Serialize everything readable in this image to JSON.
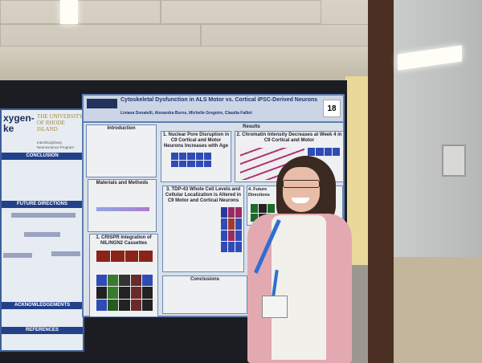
{
  "poster_main": {
    "title": "Cytoskeletal Dysfunction in ALS Motor vs. Cortical iPSC-Derived Neurons",
    "authors": "Liviana Donatelli, Alexandra Burns, Michelle Gregoire, Claudia Fallini",
    "board_number": "18",
    "sections": {
      "introduction": "Introduction",
      "results": "Results",
      "materials": "Materials and Methods",
      "crispr": "1. CRISPR Integration of NIL/NGN2 Cassettes",
      "nuclear": "1. Nuclear Pore Disruption in C9 Cortical and Motor Neurons Increases with Age",
      "chromatin": "2. Chromatin Intensity Decreases at Week 4 in C9 Cortical and Motor",
      "tdp43": "3. TDP-43 Whole Cell Levels and Cellular Localization is Altered in C9 Motor and Cortical Neurons",
      "future": "4. Future Directions",
      "conclusions": "Conclusions"
    }
  },
  "poster_left": {
    "title_fragment": "xygen-\nke",
    "university": "THE UNIVERSITY OF RHODE ISLAND",
    "program": "Interdisciplinary Neuroscience Program",
    "conclusion": "CONCLUSION",
    "future_directions": "FUTURE DIRECTIONS",
    "acknowledgements": "ACKNOWLEDGEMENTS",
    "references": "REFERENCES"
  }
}
